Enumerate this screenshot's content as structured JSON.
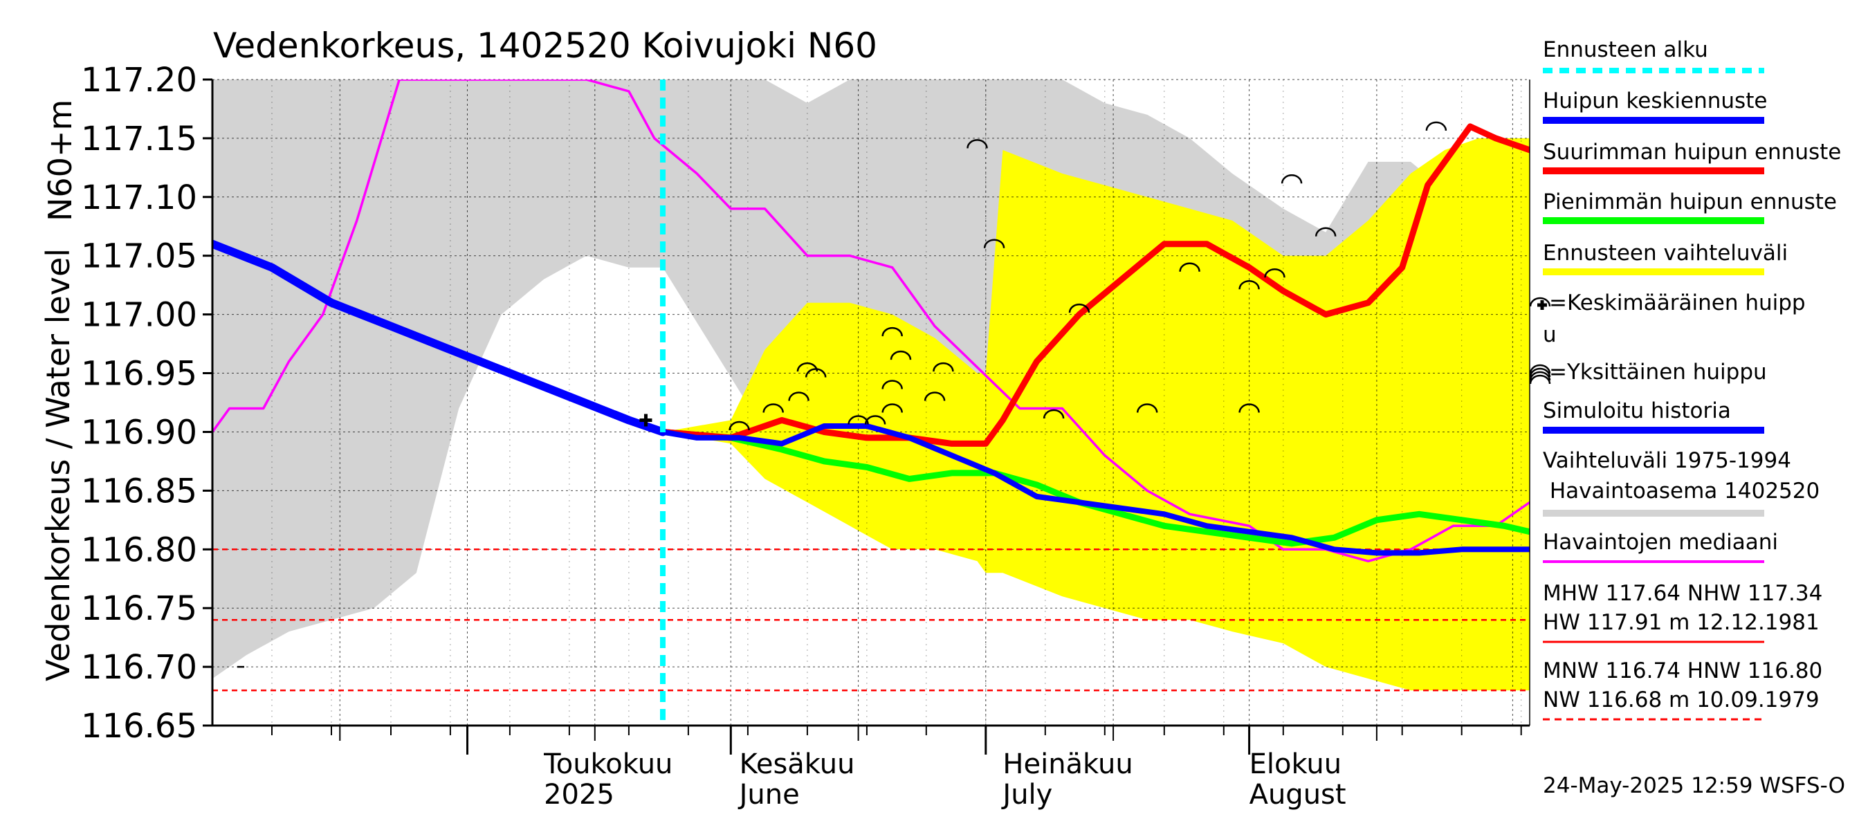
{
  "chart_data": {
    "type": "line",
    "title": "Vedenkorkeus, 1402520 Koivujoki N60",
    "ylabel": "Vedenkorkeus / Water level",
    "yunit": "N60+m",
    "ylim": [
      116.65,
      117.2
    ],
    "yticks": [
      "117.20",
      "117.15",
      "117.10",
      "117.05",
      "117.00",
      "116.95",
      "116.90",
      "116.85",
      "116.80",
      "116.75",
      "116.70",
      "116.65"
    ],
    "xlim": [
      "2025-04-01",
      "2025-09-03"
    ],
    "months": [
      {
        "name": "Toukokuu",
        "name_en": "2025",
        "date": "2025-05-01",
        "label_date": "2025-05-10"
      },
      {
        "name": "Kesäkuu",
        "name_en": "June",
        "date": "2025-06-01",
        "label_date": "2025-06-02"
      },
      {
        "name": "Heinäkuu",
        "name_en": "July",
        "date": "2025-07-01",
        "label_date": "2025-07-03"
      },
      {
        "name": "Elokuu",
        "name_en": "August",
        "date": "2025-08-01",
        "label_date": "2025-08-01"
      }
    ],
    "forecast_start": "2025-05-24",
    "grid": true,
    "legend_position": "right",
    "series": [
      {
        "name": "Ennusteen vaihteluväli",
        "color": "#ffff00",
        "kind": "band",
        "x": [
          "2025-05-24",
          "2025-06-01",
          "2025-06-05",
          "2025-06-10",
          "2025-06-15",
          "2025-06-20",
          "2025-06-25",
          "2025-06-30",
          "2025-07-01",
          "2025-07-03",
          "2025-07-10",
          "2025-07-15",
          "2025-07-20",
          "2025-07-25",
          "2025-07-30",
          "2025-08-05",
          "2025-08-10",
          "2025-08-15",
          "2025-08-20",
          "2025-08-24",
          "2025-08-28",
          "2025-09-03"
        ],
        "upper": [
          116.9,
          116.91,
          116.97,
          117.01,
          117.01,
          117.0,
          116.98,
          116.95,
          116.95,
          117.14,
          117.12,
          117.11,
          117.1,
          117.09,
          117.08,
          117.05,
          117.05,
          117.08,
          117.12,
          117.14,
          117.15,
          117.15
        ],
        "lower": [
          116.9,
          116.89,
          116.86,
          116.84,
          116.82,
          116.8,
          116.8,
          116.79,
          116.78,
          116.78,
          116.76,
          116.75,
          116.74,
          116.74,
          116.73,
          116.72,
          116.7,
          116.69,
          116.68,
          116.68,
          116.68,
          116.68
        ]
      },
      {
        "name": "Vaihteluväli 1975-1994 Havaintoasema 1402520",
        "color": "#d3d3d3",
        "kind": "band",
        "x": [
          "2025-04-01",
          "2025-04-05",
          "2025-04-10",
          "2025-04-15",
          "2025-04-20",
          "2025-04-25",
          "2025-04-30",
          "2025-05-05",
          "2025-05-10",
          "2025-05-15",
          "2025-05-20",
          "2025-05-24",
          "2025-05-30",
          "2025-06-05",
          "2025-06-10",
          "2025-06-15",
          "2025-06-20",
          "2025-06-25",
          "2025-06-30",
          "2025-07-05",
          "2025-07-10",
          "2025-07-15",
          "2025-07-20",
          "2025-07-25",
          "2025-07-30",
          "2025-08-05",
          "2025-08-10",
          "2025-08-15",
          "2025-08-20",
          "2025-08-25",
          "2025-08-30",
          "2025-09-03"
        ],
        "upper": [
          117.2,
          117.2,
          117.2,
          117.2,
          117.2,
          117.2,
          117.2,
          117.2,
          117.2,
          117.2,
          117.2,
          117.2,
          117.2,
          117.2,
          117.18,
          117.2,
          117.2,
          117.2,
          117.2,
          117.2,
          117.2,
          117.18,
          117.17,
          117.15,
          117.12,
          117.09,
          117.07,
          117.13,
          117.13,
          117.1,
          117.1,
          117.08
        ],
        "lower": [
          116.69,
          116.71,
          116.73,
          116.74,
          116.75,
          116.78,
          116.92,
          117.0,
          117.03,
          117.05,
          117.04,
          117.04,
          116.97,
          116.9,
          116.87,
          116.85,
          116.84,
          116.83,
          116.82,
          116.81,
          116.81,
          116.79,
          116.78,
          116.77,
          116.76,
          116.74,
          116.73,
          116.72,
          116.71,
          116.7,
          116.69,
          116.69
        ]
      },
      {
        "name": "Havaintojen mediaani",
        "color": "#ff00ff",
        "kind": "line",
        "x": [
          "2025-04-01",
          "2025-04-03",
          "2025-04-07",
          "2025-04-10",
          "2025-04-14",
          "2025-04-18",
          "2025-04-23",
          "2025-04-26",
          "2025-05-01",
          "2025-05-05",
          "2025-05-10",
          "2025-05-15",
          "2025-05-20",
          "2025-05-23",
          "2025-05-28",
          "2025-06-01",
          "2025-06-05",
          "2025-06-10",
          "2025-06-15",
          "2025-06-20",
          "2025-06-25",
          "2025-07-05",
          "2025-07-10",
          "2025-07-15",
          "2025-07-20",
          "2025-07-25",
          "2025-08-01",
          "2025-08-05",
          "2025-08-10",
          "2025-08-15",
          "2025-08-20",
          "2025-08-25",
          "2025-08-30",
          "2025-09-03"
        ],
        "values": [
          116.9,
          116.92,
          116.92,
          116.96,
          117.0,
          117.08,
          117.2,
          117.2,
          117.2,
          117.2,
          117.2,
          117.2,
          117.19,
          117.15,
          117.12,
          117.09,
          117.09,
          117.05,
          117.05,
          117.04,
          116.99,
          116.92,
          116.92,
          116.88,
          116.85,
          116.83,
          116.82,
          116.8,
          116.8,
          116.79,
          116.8,
          116.82,
          116.82,
          116.84
        ]
      },
      {
        "name": "Simuloitu historia",
        "color": "#0000ff",
        "kind": "line",
        "x": [
          "2025-04-01",
          "2025-04-08",
          "2025-04-15",
          "2025-04-22",
          "2025-04-29",
          "2025-05-06",
          "2025-05-13",
          "2025-05-20",
          "2025-05-24"
        ],
        "values": [
          117.06,
          117.04,
          117.01,
          116.99,
          116.97,
          116.95,
          116.93,
          116.91,
          116.9
        ]
      },
      {
        "name": "Huipun keskiennuste",
        "color": "#0000ff",
        "kind": "line",
        "x": [
          "2025-05-24",
          "2025-05-28",
          "2025-06-02",
          "2025-06-07",
          "2025-06-12",
          "2025-06-17",
          "2025-06-22",
          "2025-06-27",
          "2025-07-02",
          "2025-07-07",
          "2025-07-12",
          "2025-07-17",
          "2025-07-22",
          "2025-07-27",
          "2025-08-01",
          "2025-08-06",
          "2025-08-11",
          "2025-08-16",
          "2025-08-21",
          "2025-08-26",
          "2025-08-31",
          "2025-09-03"
        ],
        "values": [
          116.9,
          116.895,
          116.895,
          116.89,
          116.905,
          116.905,
          116.895,
          116.88,
          116.865,
          116.845,
          116.84,
          116.835,
          116.83,
          116.82,
          116.815,
          116.81,
          116.8,
          116.797,
          116.797,
          116.8,
          116.8,
          116.8
        ]
      },
      {
        "name": "Suurimman huipun ennuste",
        "color": "#ff0000",
        "kind": "line",
        "x": [
          "2025-05-24",
          "2025-06-01",
          "2025-06-07",
          "2025-06-12",
          "2025-06-17",
          "2025-06-22",
          "2025-06-27",
          "2025-07-01",
          "2025-07-03",
          "2025-07-07",
          "2025-07-12",
          "2025-07-17",
          "2025-07-22",
          "2025-07-27",
          "2025-08-01",
          "2025-08-05",
          "2025-08-10",
          "2025-08-15",
          "2025-08-19",
          "2025-08-22",
          "2025-08-27",
          "2025-08-30",
          "2025-09-03"
        ],
        "values": [
          116.9,
          116.895,
          116.91,
          116.9,
          116.895,
          116.895,
          116.89,
          116.89,
          116.91,
          116.96,
          117.0,
          117.03,
          117.06,
          117.06,
          117.04,
          117.02,
          117.0,
          117.01,
          117.04,
          117.11,
          117.16,
          117.15,
          117.14
        ]
      },
      {
        "name": "Pienimmän huipun ennuste",
        "color": "#00ff00",
        "kind": "line",
        "x": [
          "2025-05-24",
          "2025-06-01",
          "2025-06-07",
          "2025-06-12",
          "2025-06-17",
          "2025-06-22",
          "2025-06-27",
          "2025-07-02",
          "2025-07-07",
          "2025-07-12",
          "2025-07-17",
          "2025-07-22",
          "2025-07-27",
          "2025-08-01",
          "2025-08-06",
          "2025-08-11",
          "2025-08-16",
          "2025-08-21",
          "2025-08-26",
          "2025-08-31",
          "2025-09-03"
        ],
        "values": [
          116.9,
          116.895,
          116.885,
          116.875,
          116.87,
          116.86,
          116.865,
          116.865,
          116.855,
          116.84,
          116.83,
          116.82,
          116.815,
          116.81,
          116.805,
          116.81,
          116.825,
          116.83,
          116.825,
          116.82,
          116.815
        ]
      }
    ],
    "average_peak": {
      "date": "2025-05-22",
      "value": 116.91
    },
    "individual_peaks": [
      {
        "date": "2025-06-02",
        "value": 116.905
      },
      {
        "date": "2025-06-06",
        "value": 116.92
      },
      {
        "date": "2025-06-09",
        "value": 116.93
      },
      {
        "date": "2025-06-10",
        "value": 116.955
      },
      {
        "date": "2025-06-11",
        "value": 116.95
      },
      {
        "date": "2025-06-16",
        "value": 116.91
      },
      {
        "date": "2025-06-18",
        "value": 116.91
      },
      {
        "date": "2025-06-20",
        "value": 116.92
      },
      {
        "date": "2025-06-20",
        "value": 116.94
      },
      {
        "date": "2025-06-20",
        "value": 116.985
      },
      {
        "date": "2025-06-21",
        "value": 116.965
      },
      {
        "date": "2025-06-25",
        "value": 116.93
      },
      {
        "date": "2025-06-26",
        "value": 116.955
      },
      {
        "date": "2025-06-30",
        "value": 117.145
      },
      {
        "date": "2025-07-02",
        "value": 117.06
      },
      {
        "date": "2025-07-09",
        "value": 116.915
      },
      {
        "date": "2025-07-12",
        "value": 117.005
      },
      {
        "date": "2025-07-20",
        "value": 116.92
      },
      {
        "date": "2025-07-25",
        "value": 117.04
      },
      {
        "date": "2025-08-01",
        "value": 117.025
      },
      {
        "date": "2025-08-01",
        "value": 116.92
      },
      {
        "date": "2025-08-04",
        "value": 117.035
      },
      {
        "date": "2025-08-06",
        "value": 117.115
      },
      {
        "date": "2025-08-10",
        "value": 117.07
      },
      {
        "date": "2025-08-23",
        "value": 117.16
      }
    ],
    "reference_lines": [
      {
        "value": 116.8,
        "color": "#ff0000"
      },
      {
        "value": 116.74,
        "color": "#ff0000"
      },
      {
        "value": 116.68,
        "color": "#ff0000"
      }
    ],
    "reference_tick": {
      "value": 116.7
    },
    "footer": "24-May-2025 12:59 WSFS-O"
  },
  "legend": {
    "forecast_start": "Ennusteen alku",
    "mean_peak": "Huipun keskiennuste",
    "max_peak": "Suurimman huipun ennuste",
    "min_peak": "Pienimmän huipun ennuste",
    "range": "Ennusteen vaihteluväli",
    "avg_peak_line1": "=Keskimääräinen huipp",
    "avg_peak_line2": "u",
    "single_peak": "=Yksittäinen huippu",
    "simulated": "Simuloitu historia",
    "hist_range_line1": "Vaihteluväli 1975-1994",
    "hist_range_line2": " Havaintoasema 1402520",
    "median": "Havaintojen mediaani",
    "stats1_line1": "MHW 117.64 NHW 117.34",
    "stats1_line2": "HW 117.91 m 12.12.1981",
    "stats2_line1": "MNW 116.74 HNW 116.80",
    "stats2_line2": "NW 116.68 m 10.09.1979"
  },
  "colors": {
    "cyan": "#00ffff",
    "blue": "#0000ff",
    "red": "#ff0000",
    "green": "#00ff00",
    "yellow": "#ffff00",
    "gray": "#d3d3d3",
    "magenta": "#ff00ff"
  }
}
